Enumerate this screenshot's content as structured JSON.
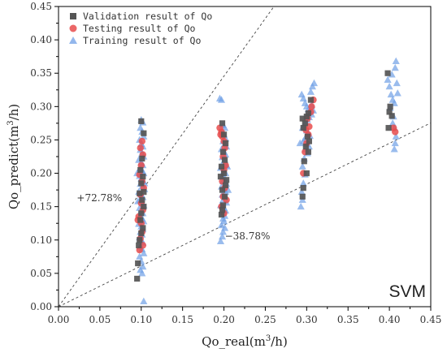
{
  "chart_data": {
    "type": "scatter",
    "title": "",
    "xlabel": "Qo_real",
    "xlabel_unit_base": "m",
    "xlabel_unit_sup": "3",
    "xlabel_unit_tail": "/h",
    "ylabel": "Qo_predict",
    "ylabel_unit_base": "m",
    "ylabel_unit_sup": "3",
    "ylabel_unit_tail": "/h",
    "xlim": [
      0.0,
      0.45
    ],
    "ylim": [
      0.0,
      0.45
    ],
    "x_ticks": [
      "0.00",
      "0.05",
      "0.10",
      "0.15",
      "0.20",
      "0.25",
      "0.30",
      "0.35",
      "0.40",
      "0.45"
    ],
    "y_ticks": [
      "0.00",
      "0.05",
      "0.10",
      "0.15",
      "0.20",
      "0.25",
      "0.30",
      "0.35",
      "0.40",
      "0.45"
    ],
    "grid": false,
    "legend_position": "top-left",
    "model_label": "SVM",
    "reference_lines": [
      {
        "label": "+72.78%",
        "slope": 1.7278,
        "label_x": 0.022,
        "label_y": 0.158
      },
      {
        "label": "−38.78%",
        "slope": 0.6122,
        "label_x": 0.201,
        "label_y": 0.101
      }
    ],
    "series": [
      {
        "name": "Validation result of Qo",
        "marker": "square",
        "color": "#555555",
        "points": [
          [
            0.1,
            0.278
          ],
          [
            0.103,
            0.26
          ],
          [
            0.101,
            0.222
          ],
          [
            0.099,
            0.205
          ],
          [
            0.102,
            0.195
          ],
          [
            0.1,
            0.185
          ],
          [
            0.098,
            0.17
          ],
          [
            0.101,
            0.16
          ],
          [
            0.103,
            0.15
          ],
          [
            0.1,
            0.14
          ],
          [
            0.099,
            0.13
          ],
          [
            0.102,
            0.118
          ],
          [
            0.1,
            0.11
          ],
          [
            0.098,
            0.1
          ],
          [
            0.097,
            0.092
          ],
          [
            0.096,
            0.065
          ],
          [
            0.095,
            0.042
          ],
          [
            0.103,
            0.172
          ],
          [
            0.198,
            0.275
          ],
          [
            0.2,
            0.258
          ],
          [
            0.202,
            0.245
          ],
          [
            0.199,
            0.232
          ],
          [
            0.201,
            0.22
          ],
          [
            0.197,
            0.21
          ],
          [
            0.2,
            0.2
          ],
          [
            0.203,
            0.19
          ],
          [
            0.198,
            0.175
          ],
          [
            0.201,
            0.165
          ],
          [
            0.199,
            0.152
          ],
          [
            0.198,
            0.145
          ],
          [
            0.197,
            0.138
          ],
          [
            0.202,
            0.182
          ],
          [
            0.196,
            0.195
          ],
          [
            0.295,
            0.282
          ],
          [
            0.3,
            0.285
          ],
          [
            0.302,
            0.29
          ],
          [
            0.298,
            0.275
          ],
          [
            0.296,
            0.268
          ],
          [
            0.301,
            0.255
          ],
          [
            0.303,
            0.248
          ],
          [
            0.299,
            0.24
          ],
          [
            0.302,
            0.232
          ],
          [
            0.297,
            0.218
          ],
          [
            0.3,
            0.2
          ],
          [
            0.296,
            0.178
          ],
          [
            0.295,
            0.165
          ],
          [
            0.305,
            0.31
          ],
          [
            0.398,
            0.35
          ],
          [
            0.4,
            0.292
          ],
          [
            0.403,
            0.286
          ],
          [
            0.401,
            0.3
          ],
          [
            0.399,
            0.268
          ]
        ]
      },
      {
        "name": "Testing result of Qo",
        "marker": "circle",
        "color": "#e84c4c",
        "points": [
          [
            0.101,
            0.248
          ],
          [
            0.099,
            0.238
          ],
          [
            0.102,
            0.228
          ],
          [
            0.1,
            0.212
          ],
          [
            0.098,
            0.198
          ],
          [
            0.101,
            0.188
          ],
          [
            0.103,
            0.178
          ],
          [
            0.099,
            0.168
          ],
          [
            0.1,
            0.155
          ],
          [
            0.102,
            0.145
          ],
          [
            0.097,
            0.135
          ],
          [
            0.1,
            0.125
          ],
          [
            0.101,
            0.112
          ],
          [
            0.099,
            0.102
          ],
          [
            0.102,
            0.092
          ],
          [
            0.098,
            0.085
          ],
          [
            0.096,
            0.13
          ],
          [
            0.195,
            0.268
          ],
          [
            0.197,
            0.262
          ],
          [
            0.196,
            0.258
          ],
          [
            0.198,
            0.255
          ],
          [
            0.2,
            0.248
          ],
          [
            0.201,
            0.238
          ],
          [
            0.199,
            0.225
          ],
          [
            0.202,
            0.212
          ],
          [
            0.2,
            0.205
          ],
          [
            0.198,
            0.188
          ],
          [
            0.201,
            0.178
          ],
          [
            0.199,
            0.165
          ],
          [
            0.203,
            0.16
          ],
          [
            0.197,
            0.15
          ],
          [
            0.2,
            0.14
          ],
          [
            0.296,
            0.2
          ],
          [
            0.298,
            0.232
          ],
          [
            0.3,
            0.245
          ],
          [
            0.302,
            0.258
          ],
          [
            0.303,
            0.27
          ],
          [
            0.301,
            0.282
          ],
          [
            0.305,
            0.292
          ],
          [
            0.306,
            0.3
          ],
          [
            0.308,
            0.31
          ],
          [
            0.299,
            0.265
          ],
          [
            0.405,
            0.268
          ],
          [
            0.407,
            0.262
          ]
        ]
      },
      {
        "name": "Training result of Qo",
        "marker": "triangle",
        "color": "#6f9fe6",
        "points": [
          [
            0.1,
            0.28
          ],
          [
            0.102,
            0.276
          ],
          [
            0.099,
            0.268
          ],
          [
            0.101,
            0.262
          ],
          [
            0.103,
            0.255
          ],
          [
            0.098,
            0.25
          ],
          [
            0.1,
            0.244
          ],
          [
            0.102,
            0.24
          ],
          [
            0.099,
            0.235
          ],
          [
            0.101,
            0.23
          ],
          [
            0.103,
            0.225
          ],
          [
            0.097,
            0.22
          ],
          [
            0.1,
            0.216
          ],
          [
            0.102,
            0.212
          ],
          [
            0.099,
            0.208
          ],
          [
            0.101,
            0.204
          ],
          [
            0.103,
            0.2
          ],
          [
            0.098,
            0.196
          ],
          [
            0.1,
            0.192
          ],
          [
            0.102,
            0.188
          ],
          [
            0.099,
            0.184
          ],
          [
            0.101,
            0.18
          ],
          [
            0.104,
            0.176
          ],
          [
            0.097,
            0.172
          ],
          [
            0.1,
            0.168
          ],
          [
            0.102,
            0.164
          ],
          [
            0.099,
            0.16
          ],
          [
            0.101,
            0.156
          ],
          [
            0.103,
            0.152
          ],
          [
            0.098,
            0.148
          ],
          [
            0.1,
            0.144
          ],
          [
            0.102,
            0.14
          ],
          [
            0.099,
            0.136
          ],
          [
            0.101,
            0.132
          ],
          [
            0.103,
            0.128
          ],
          [
            0.097,
            0.124
          ],
          [
            0.1,
            0.12
          ],
          [
            0.102,
            0.116
          ],
          [
            0.099,
            0.112
          ],
          [
            0.101,
            0.108
          ],
          [
            0.098,
            0.104
          ],
          [
            0.1,
            0.1
          ],
          [
            0.102,
            0.096
          ],
          [
            0.099,
            0.09
          ],
          [
            0.101,
            0.086
          ],
          [
            0.103,
            0.08
          ],
          [
            0.098,
            0.075
          ],
          [
            0.1,
            0.068
          ],
          [
            0.102,
            0.06
          ],
          [
            0.099,
            0.055
          ],
          [
            0.101,
            0.05
          ],
          [
            0.103,
            0.008
          ],
          [
            0.096,
            0.158
          ],
          [
            0.104,
            0.185
          ],
          [
            0.095,
            0.2
          ],
          [
            0.195,
            0.312
          ],
          [
            0.197,
            0.31
          ],
          [
            0.199,
            0.272
          ],
          [
            0.201,
            0.268
          ],
          [
            0.198,
            0.262
          ],
          [
            0.2,
            0.258
          ],
          [
            0.202,
            0.252
          ],
          [
            0.199,
            0.248
          ],
          [
            0.201,
            0.244
          ],
          [
            0.203,
            0.24
          ],
          [
            0.197,
            0.236
          ],
          [
            0.2,
            0.232
          ],
          [
            0.202,
            0.228
          ],
          [
            0.198,
            0.224
          ],
          [
            0.201,
            0.22
          ],
          [
            0.199,
            0.216
          ],
          [
            0.203,
            0.212
          ],
          [
            0.196,
            0.208
          ],
          [
            0.2,
            0.204
          ],
          [
            0.202,
            0.2
          ],
          [
            0.198,
            0.196
          ],
          [
            0.201,
            0.192
          ],
          [
            0.199,
            0.188
          ],
          [
            0.203,
            0.184
          ],
          [
            0.197,
            0.18
          ],
          [
            0.2,
            0.176
          ],
          [
            0.202,
            0.172
          ],
          [
            0.198,
            0.168
          ],
          [
            0.201,
            0.164
          ],
          [
            0.199,
            0.16
          ],
          [
            0.203,
            0.156
          ],
          [
            0.196,
            0.152
          ],
          [
            0.2,
            0.148
          ],
          [
            0.202,
            0.144
          ],
          [
            0.198,
            0.14
          ],
          [
            0.201,
            0.136
          ],
          [
            0.199,
            0.132
          ],
          [
            0.2,
            0.128
          ],
          [
            0.197,
            0.122
          ],
          [
            0.201,
            0.118
          ],
          [
            0.199,
            0.112
          ],
          [
            0.198,
            0.105
          ],
          [
            0.196,
            0.098
          ],
          [
            0.204,
            0.21
          ],
          [
            0.205,
            0.175
          ],
          [
            0.294,
            0.318
          ],
          [
            0.296,
            0.312
          ],
          [
            0.298,
            0.305
          ],
          [
            0.3,
            0.3
          ],
          [
            0.302,
            0.296
          ],
          [
            0.304,
            0.292
          ],
          [
            0.306,
            0.288
          ],
          [
            0.303,
            0.284
          ],
          [
            0.301,
            0.28
          ],
          [
            0.299,
            0.276
          ],
          [
            0.297,
            0.272
          ],
          [
            0.295,
            0.268
          ],
          [
            0.3,
            0.264
          ],
          [
            0.302,
            0.26
          ],
          [
            0.304,
            0.256
          ],
          [
            0.298,
            0.252
          ],
          [
            0.296,
            0.248
          ],
          [
            0.3,
            0.244
          ],
          [
            0.303,
            0.24
          ],
          [
            0.299,
            0.236
          ],
          [
            0.301,
            0.23
          ],
          [
            0.297,
            0.222
          ],
          [
            0.295,
            0.21
          ],
          [
            0.298,
            0.198
          ],
          [
            0.296,
            0.185
          ],
          [
            0.294,
            0.172
          ],
          [
            0.295,
            0.16
          ],
          [
            0.293,
            0.15
          ],
          [
            0.305,
            0.322
          ],
          [
            0.307,
            0.33
          ],
          [
            0.309,
            0.335
          ],
          [
            0.306,
            0.302
          ],
          [
            0.308,
            0.294
          ],
          [
            0.292,
            0.245
          ],
          [
            0.398,
            0.34
          ],
          [
            0.4,
            0.33
          ],
          [
            0.402,
            0.318
          ],
          [
            0.404,
            0.31
          ],
          [
            0.406,
            0.305
          ],
          [
            0.408,
            0.368
          ],
          [
            0.407,
            0.358
          ],
          [
            0.403,
            0.348
          ],
          [
            0.401,
            0.298
          ],
          [
            0.405,
            0.285
          ],
          [
            0.404,
            0.275
          ],
          [
            0.406,
            0.268
          ],
          [
            0.408,
            0.255
          ],
          [
            0.407,
            0.245
          ],
          [
            0.406,
            0.236
          ],
          [
            0.409,
            0.335
          ],
          [
            0.41,
            0.32
          ]
        ]
      }
    ]
  }
}
